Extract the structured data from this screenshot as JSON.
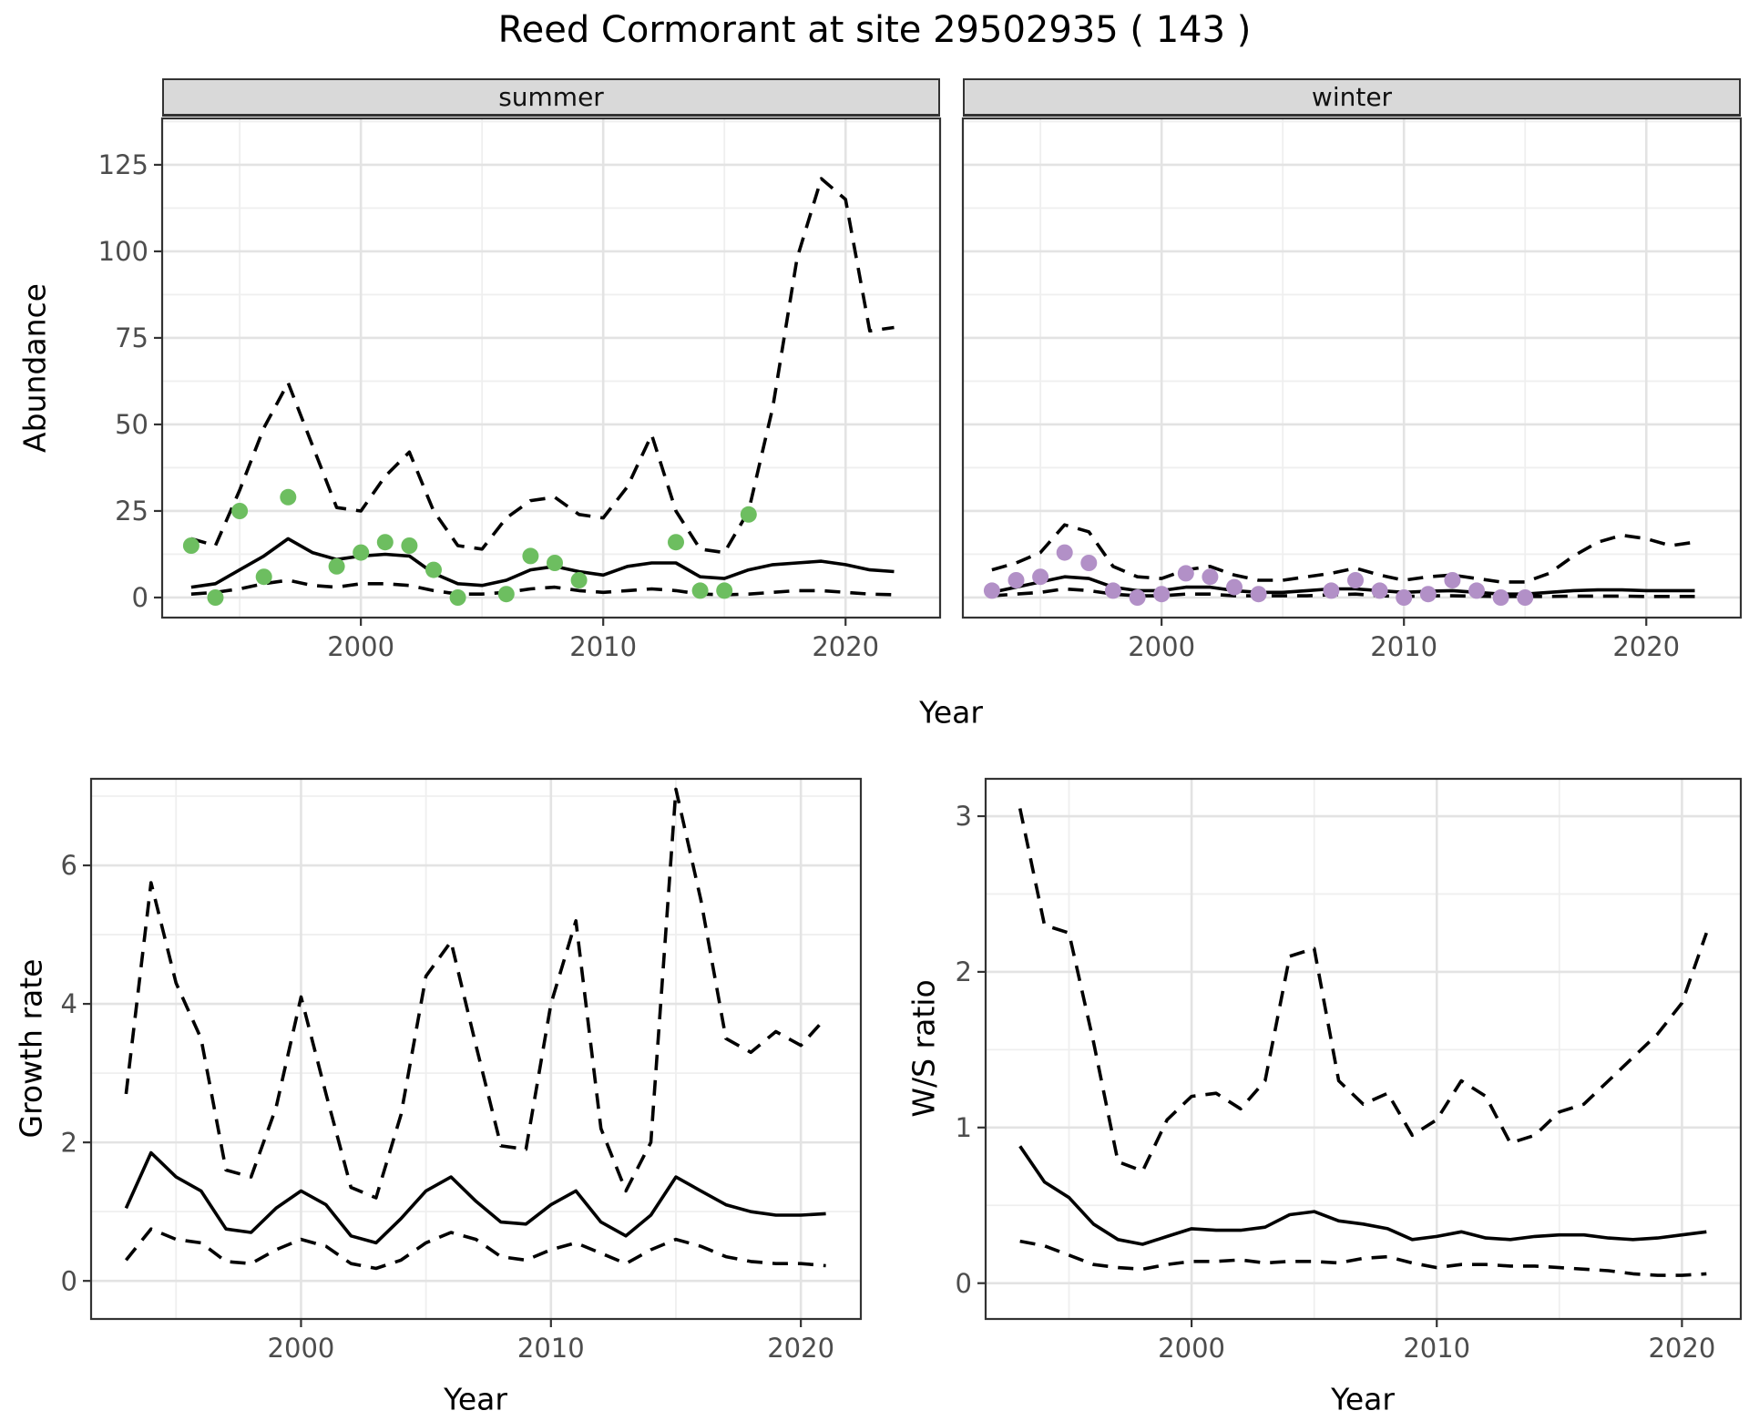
{
  "title": "Reed Cormorant at site 29502935 ( 143 )",
  "point_colors": {
    "summer": "#6DBE60",
    "winter": "#B290C7"
  },
  "line_color": "#000000",
  "chart_data": [
    {
      "id": "abundance-summer",
      "type": "line",
      "facet_label": "summer",
      "xlabel": "Year",
      "ylabel": "Abundance",
      "xlim": [
        1991.8,
        2023.9
      ],
      "ylim": [
        -5.8,
        138.4
      ],
      "x_ticks": [
        2000,
        2010,
        2020
      ],
      "x_minor": [
        1995,
        2005,
        2015
      ],
      "y_ticks": [
        0,
        25,
        50,
        75,
        100,
        125
      ],
      "y_minor": [
        12.5,
        37.5,
        62.5,
        87.5,
        112.5,
        137.5
      ],
      "grid": true,
      "legend": "none",
      "x": [
        1993,
        1994,
        1995,
        1996,
        1997,
        1998,
        1999,
        2000,
        2001,
        2002,
        2003,
        2004,
        2005,
        2006,
        2007,
        2008,
        2009,
        2010,
        2011,
        2012,
        2013,
        2014,
        2015,
        2016,
        2017,
        2018,
        2019,
        2020,
        2021,
        2022
      ],
      "series": [
        {
          "name": "fit",
          "style": "solid",
          "values": [
            3,
            4,
            8,
            12,
            17,
            13,
            11,
            12,
            12.5,
            12,
            7,
            4,
            3.5,
            5,
            8,
            9,
            7.5,
            6.5,
            9,
            10,
            10,
            6,
            5.5,
            8,
            9.5,
            10,
            10.5,
            9.5,
            8,
            7.5
          ]
        },
        {
          "name": "upper",
          "style": "dashed",
          "values": [
            17,
            15,
            31,
            49,
            62,
            44,
            26,
            25,
            35,
            42,
            25,
            15,
            14,
            23,
            28,
            29,
            24,
            23,
            32,
            47,
            25,
            14,
            13,
            25,
            55,
            98,
            121,
            115,
            77,
            78
          ]
        },
        {
          "name": "lower",
          "style": "dashed",
          "values": [
            1,
            1.5,
            2.5,
            4,
            5,
            3.5,
            3,
            4,
            4,
            3.5,
            2,
            1,
            1,
            1.5,
            2.5,
            3,
            2,
            1.5,
            2,
            2.5,
            2,
            1,
            0.8,
            1,
            1.5,
            2,
            2,
            1.5,
            1,
            0.8
          ]
        }
      ],
      "points": {
        "name": "observed",
        "color_key": "summer",
        "x": [
          1993,
          1994,
          1995,
          1996,
          1997,
          1999,
          2000,
          2001,
          2002,
          2003,
          2004,
          2006,
          2007,
          2008,
          2009,
          2013,
          2014,
          2015,
          2016
        ],
        "y": [
          15,
          0,
          25,
          6,
          29,
          9,
          13,
          16,
          15,
          8,
          0,
          1,
          12,
          10,
          5,
          16,
          2,
          2,
          24
        ]
      }
    },
    {
      "id": "abundance-winter",
      "type": "line",
      "facet_label": "winter",
      "xlabel": "",
      "ylabel": "",
      "xlim": [
        1991.8,
        2023.9
      ],
      "ylim": [
        -5.8,
        138.4
      ],
      "x_ticks": [
        2000,
        2010,
        2020
      ],
      "x_minor": [
        1995,
        2005,
        2015
      ],
      "y_ticks": [
        0,
        25,
        50,
        75,
        100,
        125
      ],
      "y_minor": [
        12.5,
        37.5,
        62.5,
        87.5,
        112.5,
        137.5
      ],
      "grid": true,
      "legend": "none",
      "x": [
        1993,
        1994,
        1995,
        1996,
        1997,
        1998,
        1999,
        2000,
        2001,
        2002,
        2003,
        2004,
        2005,
        2006,
        2007,
        2008,
        2009,
        2010,
        2011,
        2012,
        2013,
        2014,
        2015,
        2016,
        2017,
        2018,
        2019,
        2020,
        2021,
        2022
      ],
      "series": [
        {
          "name": "fit",
          "style": "solid",
          "values": [
            1.5,
            3,
            4.5,
            6,
            5.5,
            3,
            2,
            2,
            3,
            3,
            2,
            1.5,
            1.5,
            2,
            2.5,
            2.5,
            2,
            1.5,
            1.8,
            2,
            1.5,
            1,
            1,
            1.5,
            2,
            2.2,
            2.2,
            2,
            2,
            2
          ]
        },
        {
          "name": "upper",
          "style": "dashed",
          "values": [
            8,
            10,
            13,
            21,
            19,
            9,
            6,
            5.5,
            8,
            9,
            6.5,
            5,
            5,
            6,
            7,
            8.5,
            6.5,
            5,
            6,
            6.5,
            5.5,
            4.5,
            4.5,
            7,
            12,
            16,
            18,
            17,
            15,
            16
          ]
        },
        {
          "name": "lower",
          "style": "dashed",
          "values": [
            0.5,
            1,
            1.5,
            2.5,
            2,
            1,
            0.5,
            0.5,
            1,
            1,
            0.5,
            0.5,
            0.5,
            0.5,
            0.8,
            1,
            0.5,
            0.3,
            0.5,
            0.5,
            0.4,
            0.3,
            0.3,
            0.3,
            0.4,
            0.4,
            0.4,
            0.3,
            0.3,
            0.3
          ]
        }
      ],
      "points": {
        "name": "observed",
        "color_key": "winter",
        "x": [
          1993,
          1994,
          1995,
          1996,
          1997,
          1998,
          1999,
          2000,
          2001,
          2002,
          2003,
          2004,
          2007,
          2008,
          2009,
          2010,
          2011,
          2012,
          2013,
          2014,
          2015
        ],
        "y": [
          2,
          5,
          6,
          13,
          10,
          2,
          0,
          1,
          7,
          6,
          3,
          1,
          2,
          5,
          2,
          0,
          1,
          5,
          2,
          0,
          0
        ]
      }
    },
    {
      "id": "growth-rate",
      "type": "line",
      "facet_label": "",
      "xlabel": "Year",
      "ylabel": "Growth rate",
      "xlim": [
        1991.6,
        2022.4
      ],
      "ylim": [
        -0.55,
        7.25
      ],
      "x_ticks": [
        2000,
        2010,
        2020
      ],
      "x_minor": [
        1995,
        2005,
        2015
      ],
      "y_ticks": [
        0,
        2,
        4,
        6
      ],
      "y_minor": [
        1,
        3,
        5,
        7
      ],
      "grid": true,
      "legend": "none",
      "x": [
        1993,
        1994,
        1995,
        1996,
        1997,
        1998,
        1999,
        2000,
        2001,
        2002,
        2003,
        2004,
        2005,
        2006,
        2007,
        2008,
        2009,
        2010,
        2011,
        2012,
        2013,
        2014,
        2015,
        2016,
        2017,
        2018,
        2019,
        2020,
        2021
      ],
      "series": [
        {
          "name": "fit",
          "style": "solid",
          "values": [
            1.05,
            1.85,
            1.5,
            1.3,
            0.75,
            0.7,
            1.05,
            1.3,
            1.1,
            0.65,
            0.55,
            0.9,
            1.3,
            1.5,
            1.15,
            0.85,
            0.82,
            1.1,
            1.3,
            0.85,
            0.65,
            0.95,
            1.5,
            1.3,
            1.1,
            1.0,
            0.95,
            0.95,
            0.97
          ]
        },
        {
          "name": "upper",
          "style": "dashed",
          "values": [
            2.7,
            5.75,
            4.3,
            3.5,
            1.6,
            1.5,
            2.5,
            4.1,
            2.7,
            1.35,
            1.2,
            2.4,
            4.4,
            4.9,
            3.4,
            1.95,
            1.9,
            4.0,
            5.2,
            2.2,
            1.3,
            2.0,
            7.1,
            5.5,
            3.5,
            3.3,
            3.6,
            3.4,
            3.8
          ]
        },
        {
          "name": "lower",
          "style": "dashed",
          "values": [
            0.3,
            0.75,
            0.6,
            0.55,
            0.28,
            0.25,
            0.45,
            0.6,
            0.5,
            0.25,
            0.18,
            0.3,
            0.55,
            0.7,
            0.6,
            0.35,
            0.3,
            0.45,
            0.55,
            0.4,
            0.25,
            0.45,
            0.6,
            0.5,
            0.35,
            0.28,
            0.25,
            0.25,
            0.22
          ]
        }
      ],
      "points": null
    },
    {
      "id": "ws-ratio",
      "type": "line",
      "facet_label": "",
      "xlabel": "Year",
      "ylabel": "W/S ratio",
      "xlim": [
        1991.6,
        2022.4
      ],
      "ylim": [
        -0.23,
        3.24
      ],
      "x_ticks": [
        2000,
        2010,
        2020
      ],
      "x_minor": [
        1995,
        2005,
        2015
      ],
      "y_ticks": [
        0,
        1,
        2,
        3
      ],
      "y_minor": [
        0.5,
        1.5,
        2.5
      ],
      "grid": true,
      "legend": "none",
      "x": [
        1993,
        1994,
        1995,
        1996,
        1997,
        1998,
        1999,
        2000,
        2001,
        2002,
        2003,
        2004,
        2005,
        2006,
        2007,
        2008,
        2009,
        2010,
        2011,
        2012,
        2013,
        2014,
        2015,
        2016,
        2017,
        2018,
        2019,
        2020,
        2021
      ],
      "series": [
        {
          "name": "fit",
          "style": "solid",
          "values": [
            0.88,
            0.65,
            0.55,
            0.38,
            0.28,
            0.25,
            0.3,
            0.35,
            0.34,
            0.34,
            0.36,
            0.44,
            0.46,
            0.4,
            0.38,
            0.35,
            0.28,
            0.3,
            0.33,
            0.29,
            0.28,
            0.3,
            0.31,
            0.31,
            0.29,
            0.28,
            0.29,
            0.31,
            0.33
          ]
        },
        {
          "name": "upper",
          "style": "dashed",
          "values": [
            3.05,
            2.3,
            2.25,
            1.55,
            0.78,
            0.72,
            1.05,
            1.2,
            1.22,
            1.12,
            1.3,
            2.1,
            2.15,
            1.3,
            1.15,
            1.22,
            0.95,
            1.05,
            1.3,
            1.2,
            0.9,
            0.95,
            1.1,
            1.15,
            1.3,
            1.45,
            1.6,
            1.8,
            2.25
          ]
        },
        {
          "name": "lower",
          "style": "dashed",
          "values": [
            0.27,
            0.24,
            0.18,
            0.12,
            0.1,
            0.09,
            0.12,
            0.14,
            0.14,
            0.15,
            0.13,
            0.14,
            0.14,
            0.13,
            0.16,
            0.17,
            0.13,
            0.1,
            0.12,
            0.12,
            0.11,
            0.11,
            0.1,
            0.09,
            0.08,
            0.06,
            0.05,
            0.05,
            0.06
          ]
        }
      ],
      "points": null
    }
  ]
}
